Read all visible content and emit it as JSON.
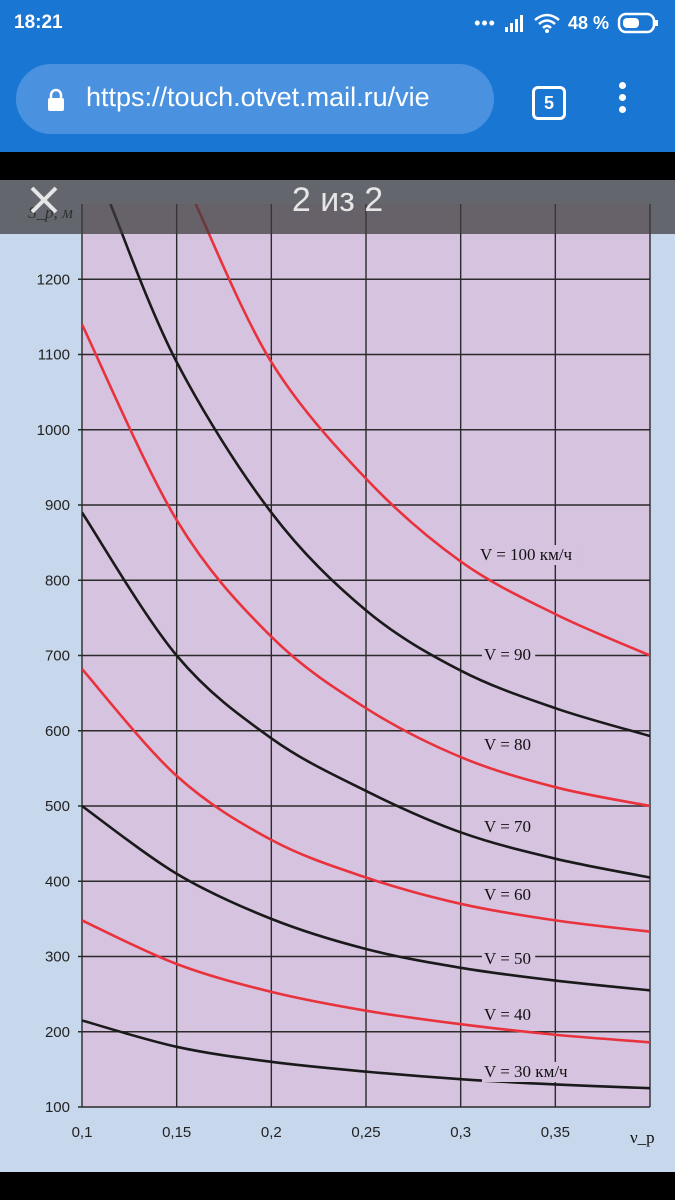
{
  "status": {
    "time": "18:21",
    "battery": "48 %"
  },
  "browser": {
    "url": "https://touch.otvet.mail.ru/vie",
    "tab_count": "5"
  },
  "viewer": {
    "counter": "2 из 2"
  },
  "colors": {
    "red": "#e8323c",
    "black": "#1a1a1a",
    "plot_bg": "#d6c3e0",
    "page_bg": "#c8d8ec"
  },
  "chart_data": {
    "type": "line",
    "ylabel": "S_p, м",
    "xlabel": "ν_p",
    "xlim": [
      0.1,
      0.4
    ],
    "ylim": [
      100,
      1300
    ],
    "x_ticks": [
      0.1,
      0.15,
      0.2,
      0.25,
      0.3,
      0.35
    ],
    "x_tick_labels": [
      "0,1",
      "0,15",
      "0,2",
      "0,25",
      "0,3",
      "0,35"
    ],
    "y_ticks": [
      100,
      200,
      300,
      400,
      500,
      600,
      700,
      800,
      900,
      1000,
      1100,
      1200
    ],
    "y_tick_labels": [
      "100",
      "200",
      "300",
      "400",
      "500",
      "600",
      "700",
      "800",
      "900",
      "1000",
      "1100",
      "1200"
    ],
    "grid": true,
    "series": [
      {
        "name": "V = 30 км/ч",
        "color": "black",
        "x": [
          0.1,
          0.15,
          0.2,
          0.25,
          0.3,
          0.35,
          0.4
        ],
        "values": [
          215,
          180,
          160,
          147,
          137,
          130,
          125
        ]
      },
      {
        "name": "V = 40",
        "color": "red",
        "x": [
          0.1,
          0.15,
          0.2,
          0.25,
          0.3,
          0.35,
          0.4
        ],
        "values": [
          348,
          290,
          253,
          228,
          210,
          196,
          186
        ]
      },
      {
        "name": "V = 50",
        "color": "black",
        "x": [
          0.1,
          0.15,
          0.2,
          0.25,
          0.3,
          0.35,
          0.4
        ],
        "values": [
          500,
          410,
          350,
          310,
          285,
          268,
          255
        ]
      },
      {
        "name": "V = 60",
        "color": "red",
        "x": [
          0.1,
          0.15,
          0.2,
          0.25,
          0.3,
          0.35,
          0.4
        ],
        "values": [
          682,
          540,
          455,
          405,
          370,
          348,
          333
        ]
      },
      {
        "name": "V = 70",
        "color": "black",
        "x": [
          0.1,
          0.15,
          0.2,
          0.25,
          0.3,
          0.35,
          0.4
        ],
        "values": [
          890,
          700,
          590,
          520,
          465,
          430,
          405
        ]
      },
      {
        "name": "V = 80",
        "color": "red",
        "x": [
          0.1,
          0.15,
          0.2,
          0.25,
          0.3,
          0.35,
          0.4
        ],
        "values": [
          1140,
          880,
          725,
          630,
          565,
          525,
          500
        ]
      },
      {
        "name": "V = 90",
        "color": "black",
        "x": [
          0.115,
          0.15,
          0.2,
          0.25,
          0.3,
          0.35,
          0.4
        ],
        "values": [
          1300,
          1090,
          890,
          760,
          680,
          630,
          593
        ]
      },
      {
        "name": "V = 100 км/ч",
        "color": "red",
        "x": [
          0.16,
          0.2,
          0.25,
          0.3,
          0.35,
          0.4
        ],
        "values": [
          1300,
          1090,
          935,
          825,
          755,
          700
        ]
      }
    ]
  }
}
